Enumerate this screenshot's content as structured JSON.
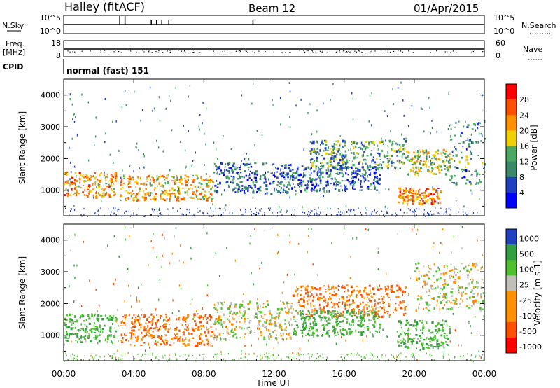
{
  "header": {
    "title": "Halley (fitACF)",
    "beam": "Beam 12",
    "date": "01/Apr/2015"
  },
  "strip_nsky": {
    "left_label": "N.Sky",
    "left_ticks": [
      "10^5",
      "10^0"
    ],
    "right_ticks": [
      "10^5",
      "10^0"
    ],
    "right_label": "N.Search"
  },
  "strip_freq": {
    "left_label_line1": "Freq.",
    "left_label_line2": "[MHz]",
    "left_ticks": [
      "18",
      "8"
    ],
    "right_ticks": [
      "60",
      "0"
    ],
    "right_label": "Nave"
  },
  "strip_cpid": {
    "label": "CPID",
    "text": "normal (fast) 151"
  },
  "x_axis": {
    "label": "Time UT",
    "ticks": [
      "00:00",
      "04:00",
      "08:00",
      "12:00",
      "16:00",
      "20:00",
      "00:00"
    ]
  },
  "colors": {
    "power": [
      "#0000ff",
      "#2040c0",
      "#3a8a6a",
      "#4aa860",
      "#f0d000",
      "#ff9000",
      "#ff5000",
      "#ff0000"
    ],
    "velocity": [
      "#ff0000",
      "#ff5000",
      "#ff9000",
      "#ff9000",
      "#c0c0b8",
      "#50c030",
      "#30a040",
      "#2040c0"
    ]
  },
  "chart_data": [
    {
      "type": "heatmap",
      "name": "power",
      "ylabel": "Slant Range [km]",
      "yticks": [
        "1000",
        "2000",
        "3000",
        "4000"
      ],
      "ylim": [
        200,
        4500
      ],
      "xlim_hours": [
        0,
        24
      ],
      "colorbar": {
        "label": "Power [dB]",
        "ticks": [
          "28",
          "24",
          "20",
          "16",
          "12",
          "8",
          "4"
        ]
      },
      "features": [
        {
          "t0": 0.0,
          "t1": 3.0,
          "r0": 800,
          "r1": 1600,
          "value": 22
        },
        {
          "t0": 3.2,
          "t1": 8.5,
          "r0": 700,
          "r1": 1500,
          "value": 20
        },
        {
          "t0": 8.5,
          "t1": 13.0,
          "r0": 900,
          "r1": 1900,
          "value": 8
        },
        {
          "t0": 13.0,
          "t1": 18.0,
          "r0": 1000,
          "r1": 1800,
          "value": 8
        },
        {
          "t0": 14.0,
          "t1": 19.5,
          "r0": 1700,
          "r1": 2600,
          "value": 12
        },
        {
          "t0": 19.0,
          "t1": 21.5,
          "r0": 600,
          "r1": 1100,
          "value": 24
        },
        {
          "t0": 19.5,
          "t1": 22.0,
          "r0": 1500,
          "r1": 2300,
          "value": 16
        },
        {
          "t0": 22.0,
          "t1": 24.0,
          "r0": 1200,
          "r1": 3200,
          "value": 10
        }
      ]
    },
    {
      "type": "heatmap",
      "name": "velocity",
      "ylabel": "Slant Range [km]",
      "yticks": [
        "1000",
        "2000",
        "3000",
        "4000"
      ],
      "ylim": [
        200,
        4500
      ],
      "xlim_hours": [
        0,
        24
      ],
      "colorbar": {
        "label": "Velocity [m s-1]",
        "ticks": [
          "1000",
          "500",
          "100",
          "25",
          "-25",
          "-100",
          "-500",
          "-1000"
        ]
      },
      "features": [
        {
          "t0": 0.0,
          "t1": 3.0,
          "r0": 800,
          "r1": 1700,
          "value": 100
        },
        {
          "t0": 3.2,
          "t1": 8.5,
          "r0": 700,
          "r1": 1700,
          "value": -100
        },
        {
          "t0": 8.5,
          "t1": 13.0,
          "r0": 900,
          "r1": 2100,
          "value": 0
        },
        {
          "t0": 13.0,
          "t1": 19.5,
          "r0": 1600,
          "r1": 2600,
          "value": -100
        },
        {
          "t0": 13.0,
          "t1": 18.0,
          "r0": 1000,
          "r1": 1800,
          "value": 100
        },
        {
          "t0": 19.0,
          "t1": 22.0,
          "r0": 600,
          "r1": 1500,
          "value": 100
        },
        {
          "t0": 20.0,
          "t1": 24.0,
          "r0": 1800,
          "r1": 3300,
          "value": 0
        }
      ]
    }
  ]
}
